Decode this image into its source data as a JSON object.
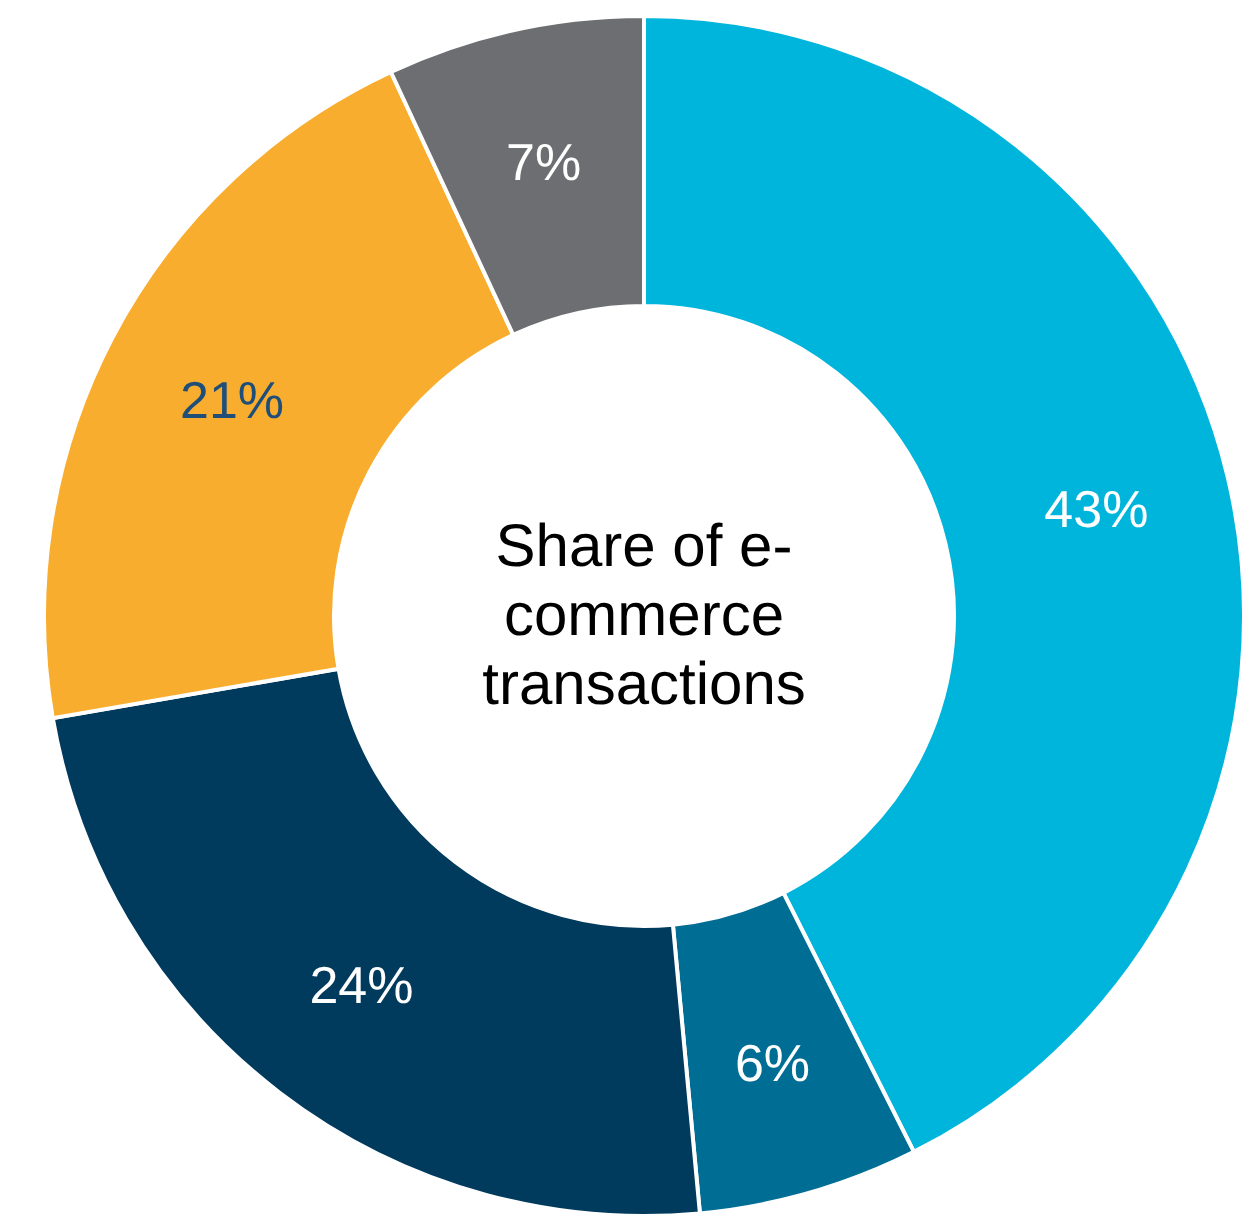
{
  "chart_data": {
    "type": "donut",
    "title": "Share of e-commerce transactions",
    "categories": [
      null,
      null,
      null,
      null,
      null
    ],
    "values": [
      43,
      6,
      24,
      21,
      7
    ],
    "value_labels": [
      "43%",
      "6%",
      "24%",
      "21%",
      "7%"
    ],
    "colors": [
      "#00b5dc",
      "#006d94",
      "#003a5d",
      "#f9ad2e",
      "#6d6e71"
    ]
  }
}
